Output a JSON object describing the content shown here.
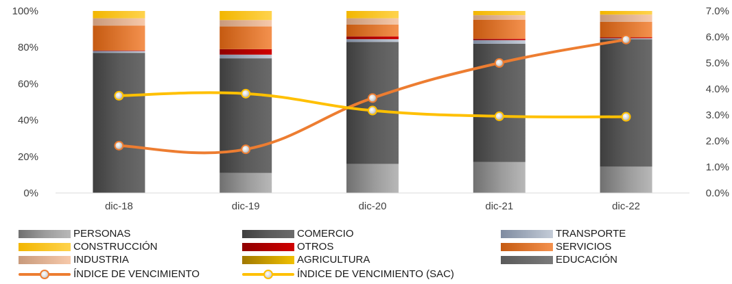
{
  "chart_data": {
    "type": "bar",
    "stacked": true,
    "categories": [
      "dic-18",
      "dic-19",
      "dic-20",
      "dic-21",
      "dic-22"
    ],
    "y_left": {
      "ticks": [
        "0%",
        "20%",
        "40%",
        "60%",
        "80%",
        "100%"
      ],
      "range": [
        0,
        100
      ]
    },
    "y_right": {
      "ticks": [
        "0.0%",
        "1.0%",
        "2.0%",
        "3.0%",
        "4.0%",
        "5.0%",
        "6.0%",
        "7.0%"
      ],
      "range": [
        0,
        7
      ]
    },
    "grid": false,
    "legend_position": "bottom",
    "series": [
      {
        "name": "PERSONAS",
        "color": "#9a9a9a",
        "values": [
          0,
          11,
          16,
          17,
          14.5
        ]
      },
      {
        "name": "COMERCIO",
        "color": "#555555",
        "values": [
          77,
          63,
          67,
          65,
          70
        ]
      },
      {
        "name": "TRANSPORTE",
        "color": "#a9b4c4",
        "values": [
          1,
          2,
          1.5,
          2,
          0.5
        ]
      },
      {
        "name": "CONSTRUCCIÓN",
        "color": "#ffc000",
        "values": [
          0,
          0,
          0,
          0,
          0
        ]
      },
      {
        "name": "OTROS",
        "color": "#c00000",
        "values": [
          0.3,
          3,
          1.5,
          0.7,
          0.5
        ]
      },
      {
        "name": "SERVICIOS",
        "color": "#ed7d31",
        "values": [
          13.7,
          12.5,
          6.5,
          10.5,
          8.5
        ]
      },
      {
        "name": "INDUSTRIA",
        "color": "#f4b183",
        "values": [
          4,
          3.5,
          3.5,
          2.5,
          4
        ]
      },
      {
        "name": "AGRICULTURA",
        "color": "#e6a800",
        "values": [
          0,
          0,
          0,
          0,
          0
        ]
      },
      {
        "name": "EDUCACIÓN",
        "color": "#6e6e6e",
        "values": [
          0,
          0,
          0,
          0,
          0
        ]
      }
    ],
    "top_cap": {
      "color": "#ffc000",
      "values": [
        4,
        5,
        4,
        2.3,
        2
      ]
    },
    "lines": [
      {
        "name": "ÍNDICE DE VENCIMIENTO",
        "color": "#ed7d31",
        "axis": "right",
        "values": [
          1.82,
          1.68,
          3.65,
          5.0,
          5.9
        ]
      },
      {
        "name": "ÍNDICE DE VENCIMIENTO (SAC)",
        "color": "#ffc000",
        "axis": "right",
        "values": [
          3.74,
          3.82,
          3.17,
          2.95,
          2.93
        ]
      }
    ]
  }
}
